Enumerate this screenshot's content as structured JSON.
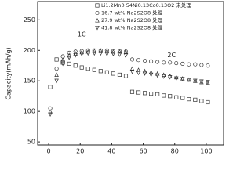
{
  "chart_data": {
    "type": "scatter",
    "y_label": "Capacity(mAh/g)",
    "annotations": [
      "1C",
      "2C"
    ],
    "x": [
      1,
      5,
      9,
      13,
      17,
      21,
      25,
      29,
      33,
      37,
      41,
      45,
      49,
      53,
      57,
      61,
      65,
      69,
      73,
      77,
      81,
      85,
      89,
      93,
      97,
      101
    ],
    "xlim": [
      -7,
      111
    ],
    "xticks": [
      0,
      20,
      40,
      60,
      80,
      100
    ],
    "ylim": [
      45,
      280
    ],
    "yticks": [
      50,
      100,
      150,
      200,
      250
    ],
    "legend": "top-right",
    "series": [
      {
        "name": "Li1.2Mn0.54Ni0.13Co0.13O2 未处理",
        "marker": "square",
        "color": "#333333",
        "values": [
          140,
          185,
          180,
          178,
          175,
          172,
          170,
          168,
          166,
          164,
          162,
          160,
          158,
          132,
          131,
          130,
          129,
          128,
          126,
          125,
          123,
          122,
          120,
          119,
          117,
          115
        ]
      },
      {
        "name": "16.7 wt% Na2S2O8 处理",
        "marker": "circle",
        "color": "#333333",
        "values": [
          105,
          170,
          190,
          196,
          198,
          199,
          200,
          200,
          200,
          200,
          199,
          199,
          198,
          185,
          184,
          183,
          182,
          181,
          180,
          180,
          179,
          178,
          177,
          177,
          176,
          175
        ]
      },
      {
        "name": "27.9 wt% Na2S2O8 处理",
        "marker": "triangle-up",
        "color": "#333333",
        "values": [
          100,
          160,
          185,
          192,
          195,
          197,
          198,
          199,
          199,
          199,
          198,
          198,
          197,
          170,
          168,
          166,
          164,
          162,
          160,
          158,
          156,
          154,
          152,
          150,
          148,
          147
        ]
      },
      {
        "name": "41.8 wt% Na2S2O8 处理",
        "marker": "triangle-down",
        "color": "#333333",
        "values": [
          95,
          150,
          178,
          188,
          192,
          194,
          195,
          195,
          195,
          194,
          194,
          193,
          192,
          165,
          163,
          162,
          160,
          159,
          157,
          156,
          154,
          153,
          152,
          150,
          149,
          148
        ]
      }
    ]
  }
}
